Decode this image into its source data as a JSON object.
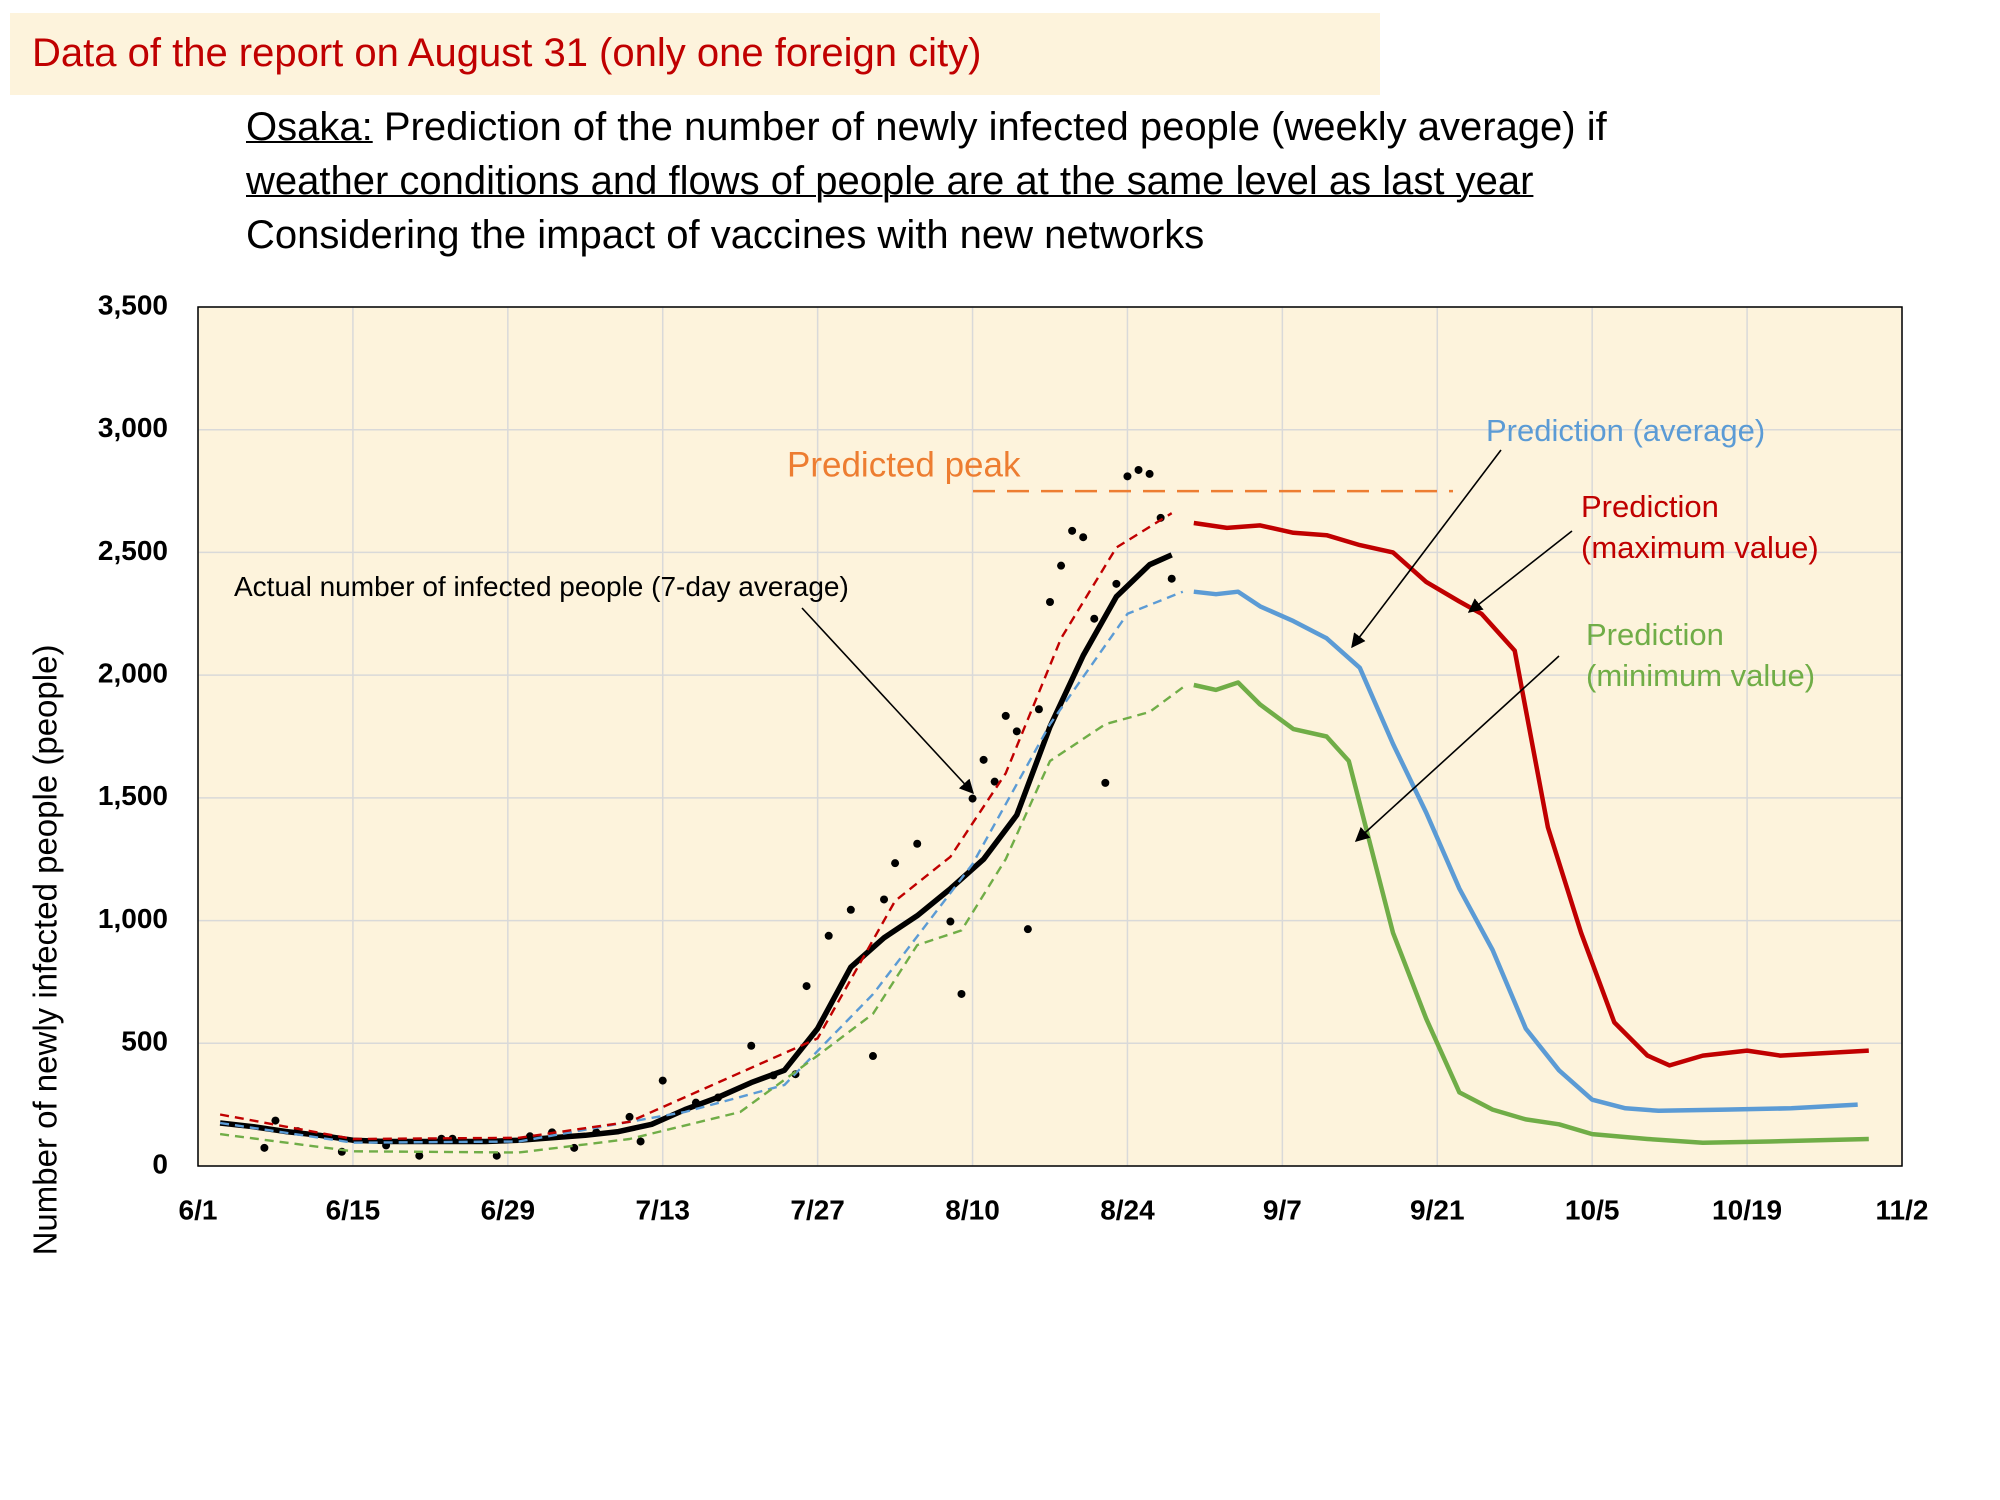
{
  "title": "Data of the report on August 31 (only one foreign city)",
  "chart_data": {
    "type": "line",
    "location": "Osaka:",
    "subtitle_lines": [
      "Prediction of the number of newly infected people (weekly average) if",
      "weather conditions and flows of people are at the same level as last year",
      "Considering the impact of vaccines with new networks"
    ],
    "ylabel": "Number of newly infected people (people)",
    "xlim": [
      "6/1",
      "11/2"
    ],
    "xticks": [
      "6/1",
      "6/15",
      "6/29",
      "7/13",
      "7/27",
      "8/10",
      "8/24",
      "9/7",
      "9/21",
      "10/5",
      "10/19",
      "11/2"
    ],
    "ylim": [
      0,
      3500
    ],
    "yticks": [
      0,
      500,
      {
        "value": 1000,
        "label": "1,000"
      },
      {
        "value": 1500,
        "label": "1,500"
      },
      {
        "value": 2000,
        "label": "2,000"
      },
      {
        "value": 2500,
        "label": "2,500"
      },
      {
        "value": 3000,
        "label": "3,000"
      },
      {
        "value": 3500,
        "label": "3,500"
      }
    ],
    "grid": true,
    "peak": {
      "text": "Predicted peak",
      "value": 2750,
      "color": "#ed7d31"
    },
    "scatter": {
      "color": "#000000",
      "x": [
        "6/7",
        "6/8",
        "6/10",
        "6/14",
        "6/18",
        "6/21",
        "6/23",
        "6/24",
        "6/28",
        "7/1",
        "7/3",
        "7/5",
        "7/7",
        "7/10",
        "7/11",
        "7/13",
        "7/16",
        "7/18",
        "7/21",
        "7/23",
        "7/25",
        "7/26",
        "7/28",
        "7/30",
        "8/1",
        "8/2",
        "8/3",
        "8/5",
        "8/8",
        "8/9",
        "8/10",
        "8/11",
        "8/12",
        "8/13",
        "8/14",
        "8/15",
        "8/16",
        "8/17",
        "8/18",
        "8/19",
        "8/20",
        "8/21",
        "8/22",
        "8/23",
        "8/24",
        "8/25",
        "8/26",
        "8/27",
        "8/28"
      ],
      "values": [
        74,
        185,
        142,
        58,
        84,
        42,
        111,
        111,
        42,
        121,
        137,
        74,
        137,
        200,
        100,
        348,
        258,
        279,
        490,
        369,
        374,
        733,
        938,
        1044,
        448,
        1086,
        1234,
        1313,
        996,
        701,
        1497,
        1655,
        1566,
        1834,
        1771,
        965,
        1861,
        2298,
        2446,
        2588,
        2562,
        2230,
        1561,
        2372,
        2810,
        2836,
        2820,
        2641,
        2393
      ]
    },
    "series": [
      {
        "name": "Actual number of infected people (7-day average)",
        "color": "#000000",
        "style": "solid",
        "x": [
          "6/3",
          "6/6",
          "6/9",
          "6/12",
          "6/15",
          "6/18",
          "6/21",
          "6/24",
          "6/27",
          "6/30",
          "7/3",
          "7/6",
          "7/9",
          "7/12",
          "7/15",
          "7/18",
          "7/21",
          "7/24",
          "7/27",
          "7/30",
          "8/2",
          "8/5",
          "8/8",
          "8/11",
          "8/14",
          "8/17",
          "8/20",
          "8/23",
          "8/26",
          "8/28"
        ],
        "values": [
          175,
          160,
          140,
          125,
          105,
          100,
          100,
          100,
          100,
          105,
          115,
          125,
          140,
          170,
          230,
          280,
          340,
          390,
          560,
          810,
          930,
          1020,
          1130,
          1250,
          1430,
          1790,
          2080,
          2320,
          2450,
          2490
        ]
      },
      {
        "color": "#5b9bd5",
        "style": "dashed",
        "x": [
          "6/3",
          "6/15",
          "6/30",
          "7/15",
          "7/24",
          "8/1",
          "8/10",
          "8/17",
          "8/24",
          "8/29"
        ],
        "values": [
          175,
          95,
          100,
          220,
          330,
          700,
          1230,
          1800,
          2250,
          2340
        ]
      },
      {
        "color": "#c00000",
        "style": "dashed",
        "x": [
          "6/3",
          "6/15",
          "6/30",
          "7/10",
          "7/20",
          "7/27",
          "8/3",
          "8/8",
          "8/13",
          "8/18",
          "8/23",
          "8/28"
        ],
        "values": [
          210,
          110,
          115,
          180,
          380,
          520,
          1080,
          1260,
          1600,
          2150,
          2520,
          2660
        ]
      },
      {
        "color": "#70ad47",
        "style": "dashed",
        "x": [
          "6/3",
          "6/15",
          "6/30",
          "7/10",
          "7/20",
          "7/27",
          "8/1",
          "8/5",
          "8/9",
          "8/13",
          "8/17",
          "8/22",
          "8/26",
          "8/29"
        ],
        "values": [
          130,
          60,
          55,
          110,
          220,
          450,
          620,
          900,
          960,
          1250,
          1650,
          1800,
          1850,
          1950
        ]
      },
      {
        "name": "Prediction (average)",
        "color": "#5b9bd5",
        "style": "solid",
        "x": [
          "8/30",
          "9/1",
          "9/3",
          "9/5",
          "9/8",
          "9/11",
          "9/14",
          "9/17",
          "9/20",
          "9/23",
          "9/26",
          "9/29",
          "10/2",
          "10/5",
          "10/8",
          "10/11",
          "10/17",
          "10/23",
          "10/29"
        ],
        "values": [
          2340,
          2330,
          2340,
          2280,
          2220,
          2150,
          2030,
          1720,
          1440,
          1130,
          880,
          560,
          390,
          270,
          235,
          225,
          230,
          235,
          250
        ]
      },
      {
        "name": "Prediction\n(maximum value)",
        "color": "#c00000",
        "style": "solid",
        "x": [
          "8/30",
          "9/2",
          "9/5",
          "9/8",
          "9/11",
          "9/14",
          "9/17",
          "9/20",
          "9/23",
          "9/25",
          "9/28",
          "10/1",
          "10/4",
          "10/7",
          "10/10",
          "10/12",
          "10/15",
          "10/19",
          "10/22",
          "10/26",
          "10/30"
        ],
        "values": [
          2620,
          2600,
          2610,
          2580,
          2570,
          2530,
          2500,
          2380,
          2300,
          2250,
          2100,
          1380,
          950,
          585,
          450,
          410,
          450,
          470,
          450,
          460,
          470
        ]
      },
      {
        "name": "Prediction\n(minimum value)",
        "color": "#70ad47",
        "style": "solid",
        "x": [
          "8/30",
          "9/1",
          "9/3",
          "9/5",
          "9/8",
          "9/11",
          "9/13",
          "9/15",
          "9/17",
          "9/20",
          "9/23",
          "9/26",
          "9/29",
          "10/2",
          "10/5",
          "10/10",
          "10/15",
          "10/21",
          "10/30"
        ],
        "values": [
          1960,
          1940,
          1970,
          1880,
          1780,
          1750,
          1650,
          1300,
          950,
          600,
          300,
          230,
          190,
          170,
          130,
          110,
          95,
          100,
          110
        ]
      }
    ]
  }
}
